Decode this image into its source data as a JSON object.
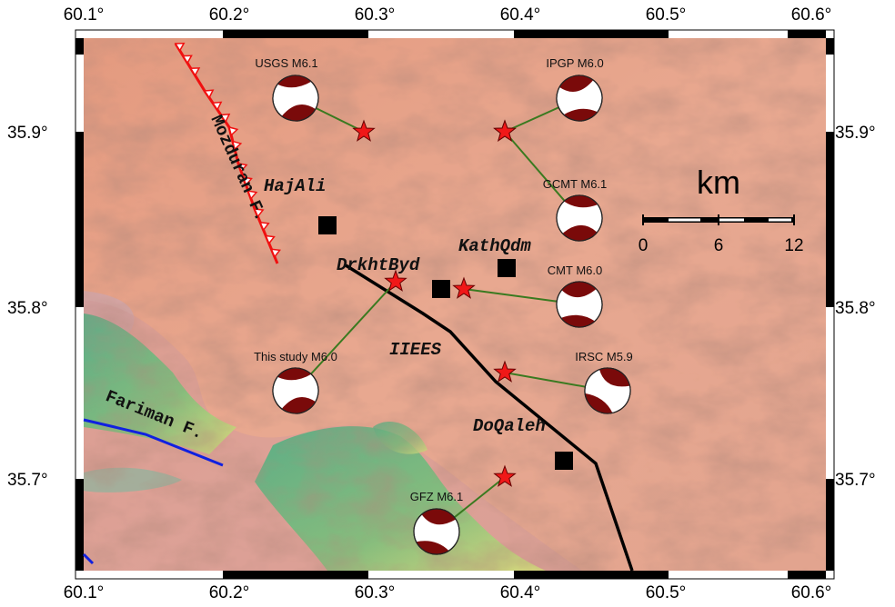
{
  "map": {
    "lon_ticks": [
      "60.1°",
      "60.2°",
      "60.3°",
      "60.4°",
      "60.5°",
      "60.6°"
    ],
    "lat_ticks": [
      "35.9°",
      "35.8°",
      "35.7°"
    ],
    "faults": [
      "Mozduran F.",
      "Fariman F."
    ],
    "places": [
      "HajAli",
      "KathQdm",
      "DrkhtByd",
      "IIEES",
      "DoQaleh"
    ],
    "solutions": [
      "USGS  M6.1",
      "IPGP  M6.0",
      "GCMT  M6.1",
      "CMT  M6.0",
      "IRSC  M5.9",
      "This study  M6.0",
      "GFZ  M6.1"
    ],
    "scale_bar": {
      "unit": "km",
      "ticks": [
        "0",
        "6",
        "12"
      ]
    }
  }
}
